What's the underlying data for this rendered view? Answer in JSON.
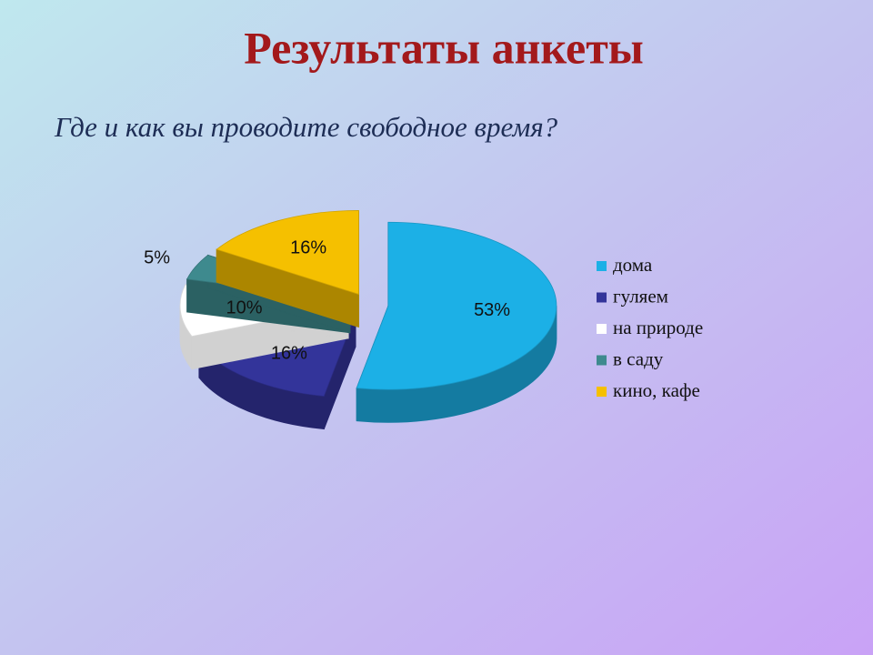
{
  "chart_data": {
    "type": "pie",
    "title": "Результаты анкеты",
    "subtitle": "Где и как вы проводите свободное время?",
    "categories": [
      "дома",
      "гуляем",
      "на природе",
      "в саду",
      "кино, кафе"
    ],
    "values": [
      53,
      16,
      10,
      5,
      16
    ],
    "value_labels": [
      "53%",
      "16%",
      "10%",
      "5%",
      "16%"
    ],
    "colors": [
      "#1cb0e6",
      "#33349a",
      "#ffffff",
      "#3e8a8e",
      "#f5c000"
    ],
    "legend": "right"
  }
}
